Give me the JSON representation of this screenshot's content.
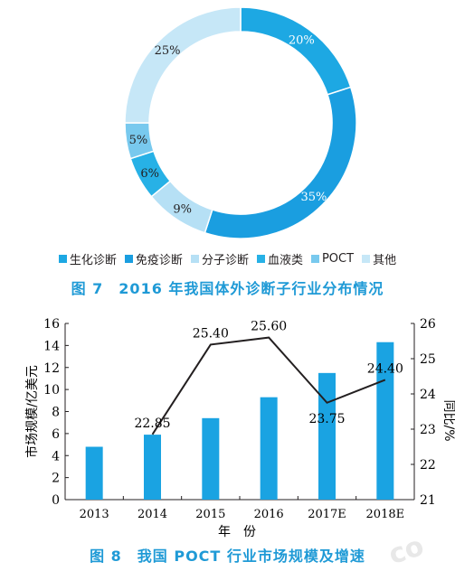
{
  "figure1": {
    "caption": "图 7　2016 年我国体外诊断子行业分布情况",
    "chart_data": {
      "type": "pie",
      "style": "donut",
      "slices": [
        {
          "name": "生化诊断",
          "value": 20,
          "label": "20%",
          "color": "#1da8e3"
        },
        {
          "name": "免疫诊断",
          "value": 35,
          "label": "35%",
          "color": "#1a9ee0"
        },
        {
          "name": "分子诊断",
          "value": 9,
          "label": "9%",
          "color": "#b6e0f5"
        },
        {
          "name": "血液类",
          "value": 6,
          "label": "6%",
          "color": "#27b1e6"
        },
        {
          "name": "POCT",
          "value": 5,
          "label": "5%",
          "color": "#78c9ee"
        },
        {
          "name": "其他",
          "value": 25,
          "label": "25%",
          "color": "#c6e7f7"
        }
      ],
      "legend": [
        "生化诊断",
        "免疫诊断",
        "分子诊断",
        "血液类",
        "POCT",
        "其他"
      ],
      "legend_placement": "bottom"
    }
  },
  "figure2": {
    "caption": "图 8　我国 POCT 行业市场规模及增速",
    "chart_data": {
      "type": "bar",
      "categories": [
        "2013",
        "2014",
        "2015",
        "2016",
        "2017E",
        "2018E"
      ],
      "series": [
        {
          "type": "bar",
          "values": [
            4.8,
            5.9,
            7.4,
            9.3,
            11.5,
            14.3
          ],
          "axis": "left",
          "color": "#1aa3e2"
        },
        {
          "type": "line",
          "values": [
            null,
            22.85,
            25.4,
            25.6,
            23.75,
            24.4
          ],
          "labels": [
            "",
            "22.85",
            "25.40",
            "25.60",
            "23.75",
            "24.40"
          ],
          "axis": "right",
          "color": "#231f20"
        }
      ],
      "xlabel": "年　份",
      "ylabel": "市场规模/亿美元",
      "y2label": "同比/%",
      "ylim": [
        0,
        16
      ],
      "yticks": [
        0,
        2,
        4,
        6,
        8,
        10,
        12,
        14,
        16
      ],
      "y2lim": [
        21,
        26
      ],
      "y2ticks": [
        21,
        22,
        23,
        24,
        25,
        26
      ],
      "grid": false
    }
  }
}
